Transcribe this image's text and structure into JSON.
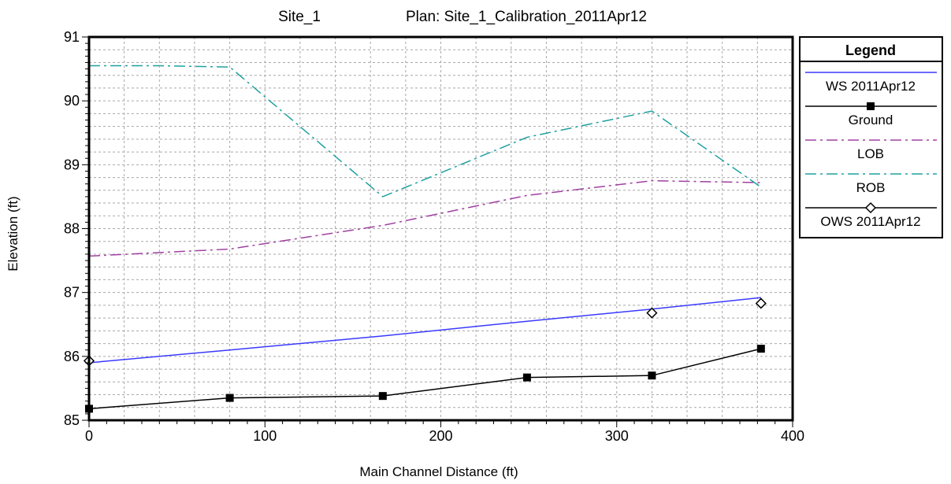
{
  "chart_data": {
    "type": "line",
    "title_left": "Site_1",
    "title_right": "Plan: Site_1_Calibration_2011Apr12",
    "xlabel": "Main Channel Distance (ft)",
    "ylabel": "Elevation (ft)",
    "xlim": [
      0,
      400
    ],
    "ylim": [
      85,
      91
    ],
    "x_ticks": [
      0,
      100,
      200,
      300,
      400
    ],
    "y_ticks": [
      85,
      86,
      87,
      88,
      89,
      90,
      91
    ],
    "grid": true,
    "legend_position": "right",
    "legend_title": "Legend",
    "series": [
      {
        "name": "WS  2011Apr12",
        "color": "#3a3aff",
        "style": "solid",
        "marker": "none",
        "x": [
          0,
          80,
          167,
          249,
          320,
          382
        ],
        "y": [
          85.9,
          86.1,
          86.32,
          86.55,
          86.74,
          86.92
        ]
      },
      {
        "name": "Ground",
        "color": "#000000",
        "style": "solid",
        "marker": "square",
        "x": [
          0,
          80,
          167,
          249,
          320,
          382
        ],
        "y": [
          85.18,
          85.35,
          85.38,
          85.67,
          85.7,
          86.12
        ]
      },
      {
        "name": "LOB",
        "color": "#a040a0",
        "style": "dashdot",
        "marker": "none",
        "x": [
          0,
          80,
          167,
          249,
          320,
          382
        ],
        "y": [
          87.57,
          87.68,
          88.05,
          88.52,
          88.75,
          88.72
        ]
      },
      {
        "name": "ROB",
        "color": "#20a0a0",
        "style": "dashdot",
        "marker": "none",
        "x": [
          0,
          40,
          80,
          167,
          249,
          320,
          382
        ],
        "y": [
          90.55,
          90.55,
          90.53,
          88.5,
          89.43,
          89.84,
          88.65
        ]
      },
      {
        "name": "OWS  2011Apr12",
        "color": "#000000",
        "style": "none",
        "marker": "diamond",
        "x": [
          0,
          320,
          382
        ],
        "y": [
          85.93,
          86.68,
          86.83
        ]
      }
    ]
  }
}
